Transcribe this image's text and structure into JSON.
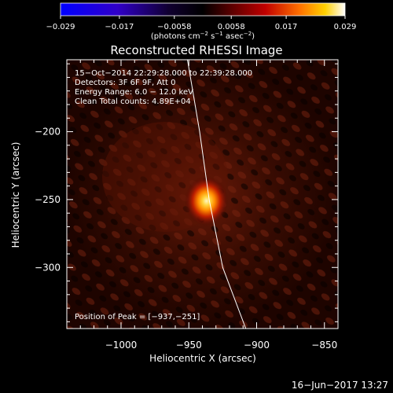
{
  "chart_data": {
    "type": "heatmap",
    "title": "Reconstructed RHESSI Image",
    "xlabel": "Heliocentric X (arcsec)",
    "ylabel": "Heliocentric Y (arcsec)",
    "xlim": [
      -1040,
      -840
    ],
    "ylim": [
      -345,
      -147
    ],
    "x_ticks": [
      -1000,
      -950,
      -900,
      -850
    ],
    "x_tick_labels": [
      "−1000",
      "−950",
      "−900",
      "−850"
    ],
    "y_ticks": [
      -200,
      -250,
      -300
    ],
    "y_tick_labels": [
      "−200",
      "−250",
      "−300"
    ],
    "colorbar": {
      "range": [
        -0.029,
        0.029
      ],
      "ticks": [
        -0.029,
        -0.017,
        -0.0058,
        0.0058,
        0.017,
        0.029
      ],
      "tick_labels": [
        "−0.029",
        "−0.017",
        "−0.0058",
        "0.0058",
        "0.017",
        "0.029"
      ],
      "unit_parts": [
        "(photons cm",
        "−2",
        " s",
        "−1",
        " asec",
        "−2",
        ")"
      ]
    },
    "annotations": [
      "15−Oct−2014 22:29:28.000 to 22:39:28.000",
      "Detectors: 3F 6F 9F, Att 0",
      "Energy Range: 6.0 − 12.0 keV",
      "Clean    Total counts: 4.89E+04"
    ],
    "peak": {
      "label": "Position of Peak = [−937,−251]",
      "x": -937,
      "y": -251
    },
    "limb": [
      [
        -951,
        -147
      ],
      [
        -942,
        -200
      ],
      [
        -935,
        -250
      ],
      [
        -925,
        -300
      ],
      [
        -908,
        -345
      ]
    ],
    "colors": {
      "background": "#000000",
      "limb": "#ffffff",
      "image_low": "#4a0c00",
      "image_mid": "#c02000",
      "image_high": "#fff7c0"
    }
  },
  "footer": {
    "timestamp": "16−Jun−2017 13:27"
  }
}
